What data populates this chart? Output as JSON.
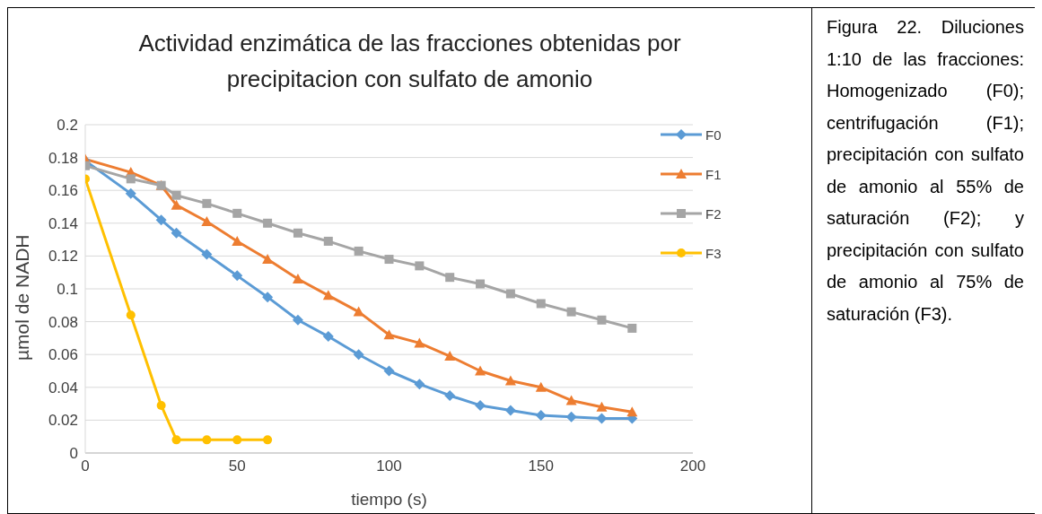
{
  "chart_data": {
    "type": "line",
    "title": "Actividad enzimática de las fracciones obtenidas por precipitacion con sulfato de amonio",
    "xlabel": "tiempo (s)",
    "ylabel": "µmol de NADH",
    "x": [
      0,
      15,
      25,
      30,
      40,
      50,
      60,
      70,
      80,
      90,
      100,
      110,
      120,
      130,
      140,
      150,
      160,
      170,
      180
    ],
    "series": [
      {
        "name": "F0",
        "color": "#5b9bd5",
        "marker": "diamond",
        "values": [
          0.178,
          0.158,
          0.142,
          0.134,
          0.121,
          0.108,
          0.095,
          0.081,
          0.071,
          0.06,
          0.05,
          0.042,
          0.035,
          0.029,
          0.026,
          0.023,
          0.022,
          0.021,
          0.021
        ]
      },
      {
        "name": "F1",
        "color": "#ed7d31",
        "marker": "triangle",
        "values": [
          0.179,
          0.171,
          0.163,
          0.151,
          0.141,
          0.129,
          0.118,
          0.106,
          0.096,
          0.086,
          0.072,
          0.067,
          0.059,
          0.05,
          0.044,
          0.04,
          0.032,
          0.028,
          0.025
        ]
      },
      {
        "name": "F2",
        "color": "#a5a5a5",
        "marker": "square",
        "values": [
          0.175,
          0.167,
          0.163,
          0.157,
          0.152,
          0.146,
          0.14,
          0.134,
          0.129,
          0.123,
          0.118,
          0.114,
          0.107,
          0.103,
          0.097,
          0.091,
          0.086,
          0.081,
          0.076
        ]
      },
      {
        "name": "F3",
        "color": "#ffc000",
        "marker": "circle",
        "x": [
          0,
          15,
          25,
          30,
          40,
          50,
          60
        ],
        "values": [
          0.167,
          0.084,
          0.029,
          0.008,
          0.008,
          0.008,
          0.008
        ]
      }
    ],
    "xlim": [
      0,
      200
    ],
    "xticks": [
      0,
      50,
      100,
      150,
      200
    ],
    "ylim": [
      0,
      0.2
    ],
    "yticks": [
      0,
      0.02,
      0.04,
      0.06,
      0.08,
      0.1,
      0.12,
      0.14,
      0.16,
      0.18,
      0.2
    ],
    "grid": "y",
    "legend": "top right",
    "line_style": "solid",
    "annotations": [
      "Figura 22. Diluciones 1:10 de las fracciones: Homogenizado (F0); centrifugación (F1); precipitación con sulfato de amonio al 55% de saturación (F2); y precipitación con sulfato de amonio al 75% de saturación (F3)."
    ]
  }
}
